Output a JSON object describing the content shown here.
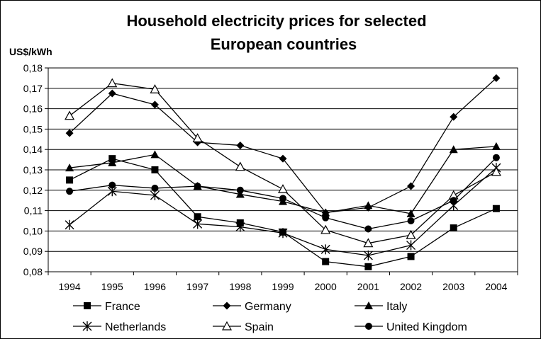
{
  "chart_data": {
    "type": "line",
    "title_line1": "Household electricity prices for selected",
    "title_line2": "European countries",
    "ylabel": "US$/kWh",
    "xlabel": "",
    "ylim": [
      0.08,
      0.18
    ],
    "ytick_step": 0.01,
    "y_tick_labels": [
      "0,08",
      "0,09",
      "0,10",
      "0,11",
      "0,12",
      "0,13",
      "0,14",
      "0,15",
      "0,16",
      "0,17",
      "0,18"
    ],
    "grid": true,
    "legend_position": "bottom",
    "categories": [
      "1994",
      "1995",
      "1996",
      "1997",
      "1998",
      "1999",
      "2000",
      "2001",
      "2002",
      "2003",
      "2004"
    ],
    "series": [
      {
        "name": "France",
        "marker": "square",
        "values": [
          0.125,
          0.1355,
          0.13,
          0.107,
          0.104,
          0.0995,
          0.085,
          0.0825,
          0.0875,
          0.1015,
          0.111
        ]
      },
      {
        "name": "Germany",
        "marker": "diamond",
        "values": [
          0.148,
          0.1675,
          0.162,
          0.1435,
          0.142,
          0.1355,
          0.109,
          0.1115,
          0.122,
          0.156,
          0.175
        ]
      },
      {
        "name": "Italy",
        "marker": "triangle",
        "values": [
          0.131,
          0.1335,
          0.1375,
          0.122,
          0.118,
          0.1145,
          0.109,
          0.1125,
          0.1085,
          0.14,
          0.1415
        ]
      },
      {
        "name": "Netherlands",
        "marker": "star",
        "values": [
          0.103,
          0.1195,
          0.1175,
          0.1035,
          0.102,
          0.099,
          0.091,
          0.088,
          0.093,
          0.1125,
          0.131
        ]
      },
      {
        "name": "Spain",
        "marker": "open-triangle",
        "values": [
          0.1565,
          0.1725,
          0.1695,
          0.1455,
          0.1315,
          0.1205,
          0.1005,
          0.094,
          0.098,
          0.1175,
          0.129
        ]
      },
      {
        "name": "United Kingdom",
        "marker": "circle",
        "values": [
          0.1195,
          0.1225,
          0.121,
          0.122,
          0.12,
          0.116,
          0.1065,
          0.101,
          0.105,
          0.115,
          0.136
        ]
      }
    ]
  },
  "colors": {
    "line": "#000000",
    "grid": "#000000",
    "background": "#ffffff"
  }
}
